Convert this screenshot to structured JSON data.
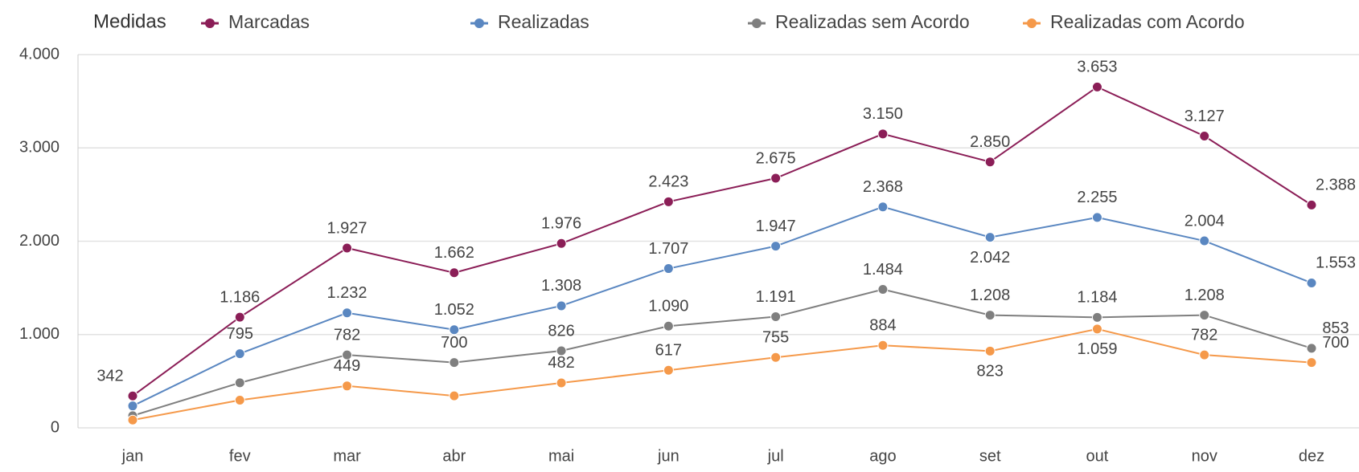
{
  "chart_data": {
    "type": "line",
    "legend_title": "Medidas",
    "categories": [
      "jan",
      "fev",
      "mar",
      "abr",
      "mai",
      "jun",
      "jul",
      "ago",
      "set",
      "out",
      "nov",
      "dez"
    ],
    "series": [
      {
        "name": "Marcadas",
        "color": "#8b1e57",
        "values": [
          342,
          1186,
          1927,
          1662,
          1976,
          2423,
          2675,
          3150,
          2850,
          3653,
          3127,
          2388
        ],
        "value_labels": [
          "342",
          "1.186",
          "1.927",
          "1.662",
          "1.976",
          "2.423",
          "2.675",
          "3.150",
          "2.850",
          "3.653",
          "3.127",
          "2.388"
        ]
      },
      {
        "name": "Realizadas",
        "color": "#5a87c1",
        "values": [
          235,
          795,
          1232,
          1052,
          1308,
          1707,
          1947,
          2368,
          2042,
          2255,
          2004,
          1553
        ],
        "value_labels": [
          null,
          "795",
          "1.232",
          "1.052",
          "1.308",
          "1.707",
          "1.947",
          "2.368",
          "2.042",
          "2.255",
          "2.004",
          "1.553"
        ]
      },
      {
        "name": "Realizadas sem Acordo",
        "color": "#7f7f7f",
        "values": [
          130,
          483,
          782,
          700,
          826,
          1090,
          1191,
          1484,
          1208,
          1184,
          1208,
          853
        ],
        "value_labels": [
          null,
          null,
          "782",
          "700",
          "826",
          "1.090",
          "1.191",
          "1.484",
          "1.208",
          "1.184",
          "1.208",
          "853"
        ]
      },
      {
        "name": "Realizadas com Acordo",
        "color": "#f5994a",
        "values": [
          84,
          297,
          449,
          343,
          482,
          617,
          755,
          884,
          823,
          1059,
          782,
          700
        ],
        "value_labels": [
          null,
          null,
          "449",
          null,
          "482",
          "617",
          "755",
          "884",
          "823",
          "1.059",
          "782",
          "700"
        ]
      }
    ],
    "ylim": [
      0,
      4000
    ],
    "yticks": [
      0,
      {
        "value": 1000,
        "label": "1.000"
      },
      {
        "value": 2000,
        "label": "2.000"
      },
      {
        "value": 3000,
        "label": "3.000"
      },
      {
        "value": 4000,
        "label": "4.000"
      }
    ],
    "grid": true
  }
}
